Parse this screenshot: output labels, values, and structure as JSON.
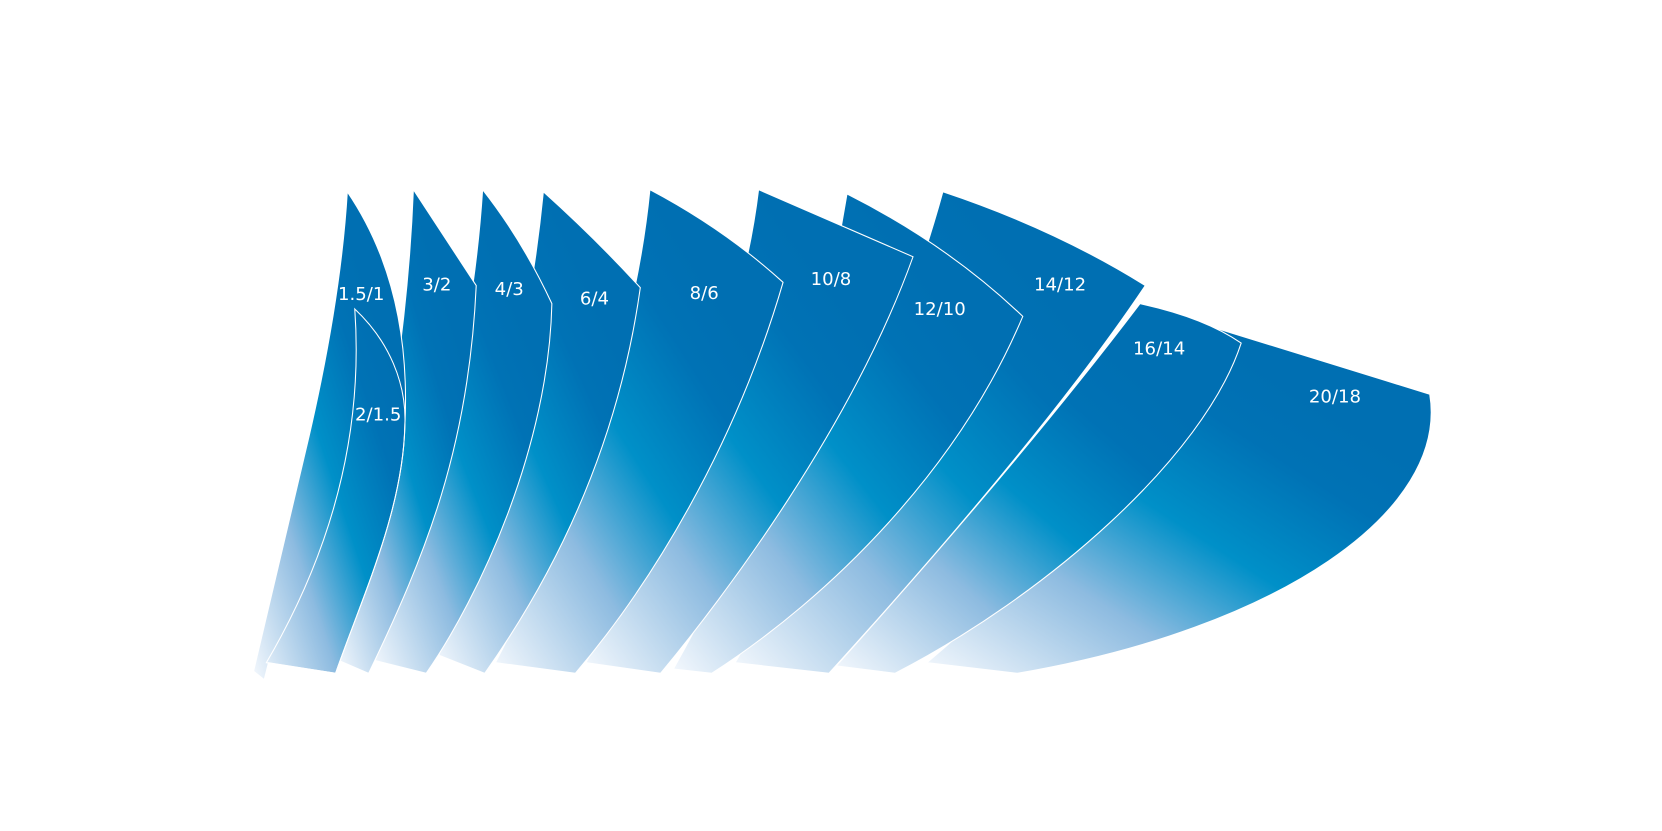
{
  "sails": [
    {
      "label": "1.5/1"
    },
    {
      "label": "2/1.5"
    },
    {
      "label": "3/2"
    },
    {
      "label": "4/3"
    },
    {
      "label": "6/4"
    },
    {
      "label": "8/6"
    },
    {
      "label": "10/8"
    },
    {
      "label": "12/10"
    },
    {
      "label": "14/12"
    },
    {
      "label": "16/14"
    },
    {
      "label": "20/18"
    }
  ]
}
